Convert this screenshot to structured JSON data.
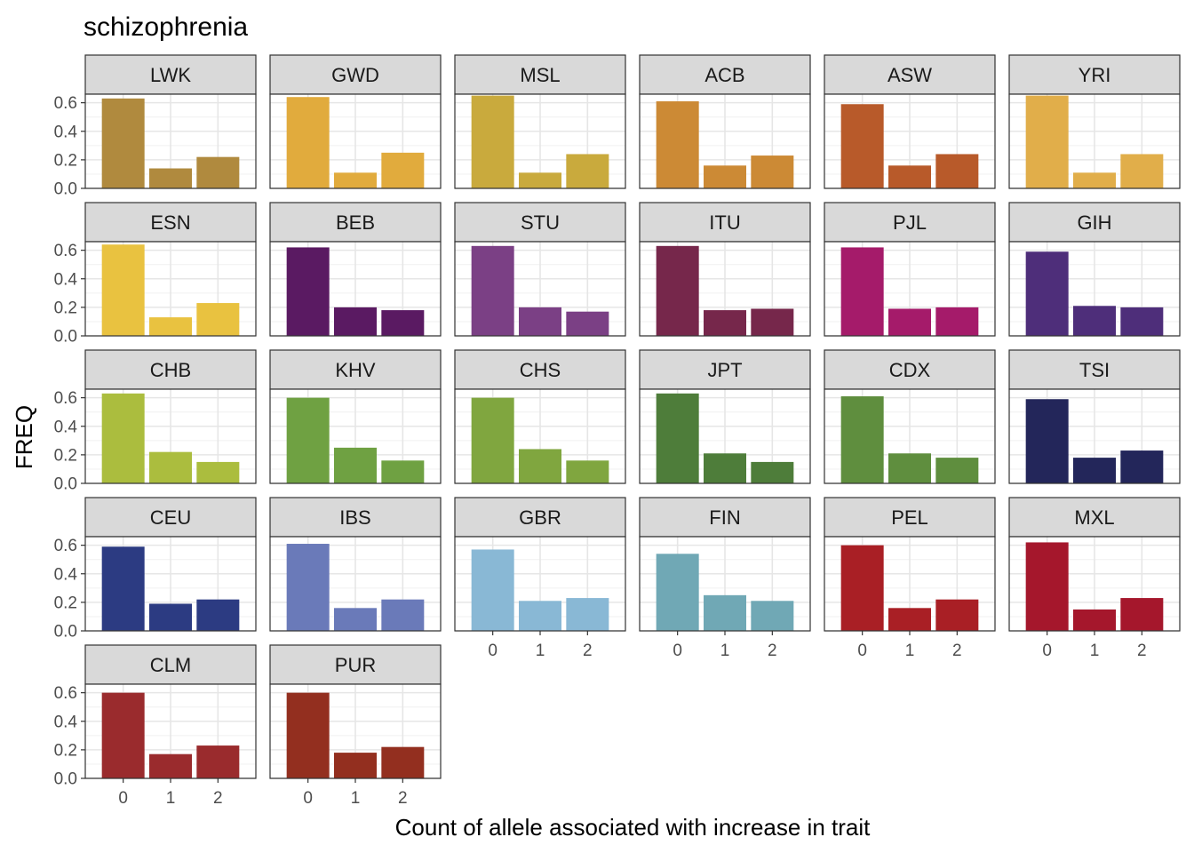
{
  "chart_data": {
    "type": "bar",
    "title": "schizophrenia",
    "xlabel": "Count of allele associated with increase in trait",
    "ylabel": "FREQ",
    "categories": [
      "0",
      "1",
      "2"
    ],
    "ylim": [
      0,
      0.66
    ],
    "yticks": [
      0.0,
      0.2,
      0.4,
      0.6
    ],
    "ytick_labels": [
      "0.0",
      "0.2",
      "0.4",
      "0.6"
    ],
    "grid": true,
    "facet_columns": 6,
    "panels": [
      {
        "name": "LWK",
        "color": "#B08A3E",
        "values": [
          0.63,
          0.14,
          0.22
        ]
      },
      {
        "name": "GWD",
        "color": "#E1AB3D",
        "values": [
          0.64,
          0.11,
          0.25
        ]
      },
      {
        "name": "MSL",
        "color": "#C9AA3D",
        "values": [
          0.65,
          0.11,
          0.24
        ]
      },
      {
        "name": "ACB",
        "color": "#CC8A35",
        "values": [
          0.61,
          0.16,
          0.23
        ]
      },
      {
        "name": "ASW",
        "color": "#B85A2A",
        "values": [
          0.59,
          0.16,
          0.24
        ]
      },
      {
        "name": "YRI",
        "color": "#E1AE4A",
        "values": [
          0.65,
          0.11,
          0.24
        ]
      },
      {
        "name": "ESN",
        "color": "#E9C240",
        "values": [
          0.64,
          0.13,
          0.23
        ]
      },
      {
        "name": "BEB",
        "color": "#5A1A62",
        "values": [
          0.62,
          0.2,
          0.18
        ]
      },
      {
        "name": "STU",
        "color": "#7B4085",
        "values": [
          0.63,
          0.2,
          0.17
        ]
      },
      {
        "name": "ITU",
        "color": "#76274B",
        "values": [
          0.63,
          0.18,
          0.19
        ]
      },
      {
        "name": "PJL",
        "color": "#A51B6A",
        "values": [
          0.62,
          0.19,
          0.2
        ]
      },
      {
        "name": "GIH",
        "color": "#4E2E7A",
        "values": [
          0.59,
          0.21,
          0.2
        ]
      },
      {
        "name": "CHB",
        "color": "#ABBD3E",
        "values": [
          0.63,
          0.22,
          0.15
        ]
      },
      {
        "name": "KHV",
        "color": "#6FA142",
        "values": [
          0.6,
          0.25,
          0.16
        ]
      },
      {
        "name": "CHS",
        "color": "#80A63F",
        "values": [
          0.6,
          0.24,
          0.16
        ]
      },
      {
        "name": "JPT",
        "color": "#4E7D3A",
        "values": [
          0.63,
          0.21,
          0.15
        ]
      },
      {
        "name": "CDX",
        "color": "#5F8E3E",
        "values": [
          0.61,
          0.21,
          0.18
        ]
      },
      {
        "name": "TSI",
        "color": "#23265A",
        "values": [
          0.59,
          0.18,
          0.23
        ]
      },
      {
        "name": "CEU",
        "color": "#2C3B82",
        "values": [
          0.59,
          0.19,
          0.22
        ]
      },
      {
        "name": "IBS",
        "color": "#6A7AB9",
        "values": [
          0.61,
          0.16,
          0.22
        ]
      },
      {
        "name": "GBR",
        "color": "#89B8D5",
        "values": [
          0.57,
          0.21,
          0.23
        ]
      },
      {
        "name": "FIN",
        "color": "#70A8B5",
        "values": [
          0.54,
          0.25,
          0.21
        ]
      },
      {
        "name": "PEL",
        "color": "#A91F25",
        "values": [
          0.6,
          0.16,
          0.22
        ]
      },
      {
        "name": "MXL",
        "color": "#A5172C",
        "values": [
          0.62,
          0.15,
          0.23
        ]
      },
      {
        "name": "CLM",
        "color": "#9A2B2D",
        "values": [
          0.6,
          0.17,
          0.23
        ]
      },
      {
        "name": "PUR",
        "color": "#932F1F",
        "values": [
          0.6,
          0.18,
          0.22
        ]
      }
    ]
  }
}
